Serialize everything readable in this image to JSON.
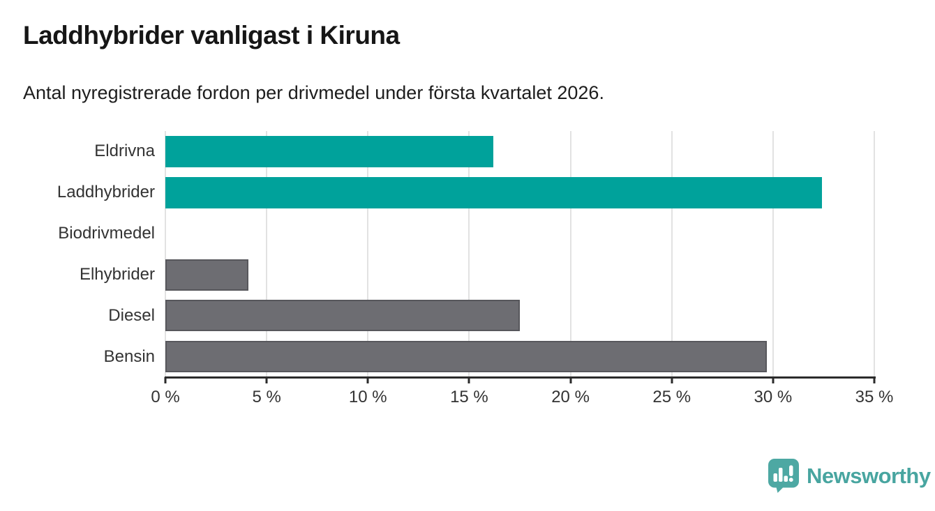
{
  "header": {
    "title": "Laddhybrider vanligast i Kiruna",
    "subtitle": "Antal nyregistrerade fordon per drivmedel under första kvartalet 2026."
  },
  "chart_data": {
    "type": "bar",
    "orientation": "horizontal",
    "categories": [
      "Eldrivna",
      "Laddhybrider",
      "Biodrivmedel",
      "Elhybrider",
      "Diesel",
      "Bensin"
    ],
    "values": [
      16.2,
      32.4,
      0,
      4.1,
      17.5,
      29.7
    ],
    "unit": "%",
    "title": "Laddhybrider vanligast i Kiruna",
    "xlabel": "",
    "ylabel": "",
    "xlim": [
      0,
      35
    ],
    "xticks": [
      0,
      5,
      10,
      15,
      20,
      25,
      30,
      35
    ],
    "xtick_label_format": "{v} %",
    "grid": true,
    "legend": false,
    "bar_colors": [
      "#00a29b",
      "#00a29b",
      "#6d6d72",
      "#6d6d72",
      "#6d6d72",
      "#6d6d72"
    ],
    "bar_border_colors": [
      "none",
      "none",
      "#57575c",
      "#57575c",
      "#57575c",
      "#57575c"
    ]
  },
  "branding": {
    "logo_text": "Newsworthy",
    "logo_color": "#48a5a0",
    "logo_icon": "newsworthy-bubble-barchart-icon"
  },
  "colors": {
    "accent_teal": "#00a29b",
    "neutral_gray": "#6d6d72",
    "axis": "#2b2b2b",
    "gridline": "#e2e2e2",
    "background": "#ffffff"
  }
}
